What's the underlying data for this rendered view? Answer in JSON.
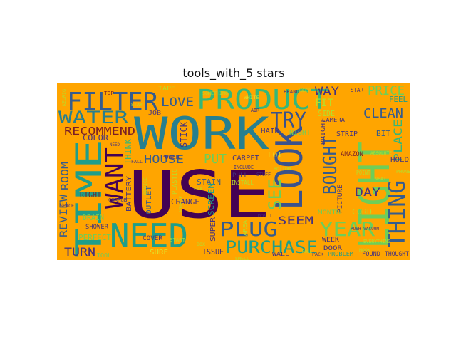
{
  "title": "tools_with_5 stars",
  "background_color": "#FFA500",
  "palette": {
    "dark_purple": "#440154",
    "indigo": "#46327E",
    "slate": "#3B528B",
    "steel": "#365C8D",
    "teal_blue": "#277F8E",
    "teal": "#1F9E89",
    "green": "#35B779",
    "light_green": "#6ECE58",
    "lime": "#B5DE2B",
    "yellow": "#E0E32A",
    "maroon": "#7A1F25",
    "brown": "#8B3A1A"
  },
  "words": [
    {
      "text": "USE",
      "color": "dark_purple"
    },
    {
      "text": "WORK",
      "color": "teal_blue"
    },
    {
      "text": "LIGHT",
      "color": "light_green"
    },
    {
      "text": "TIME",
      "color": "teal"
    },
    {
      "text": "LOOK",
      "color": "slate"
    },
    {
      "text": "NEED",
      "color": "teal"
    },
    {
      "text": "PRODUCT",
      "color": "green"
    },
    {
      "text": "FILTER",
      "color": "steel"
    },
    {
      "text": "WATER",
      "color": "teal_blue"
    },
    {
      "text": "WANT",
      "color": "dark_purple"
    },
    {
      "text": "THING",
      "color": "steel"
    },
    {
      "text": "TRY",
      "color": "slate"
    },
    {
      "text": "PLUG",
      "color": "steel"
    },
    {
      "text": "BOUGHT",
      "color": "steel"
    },
    {
      "text": "YEAR",
      "color": "light_green"
    },
    {
      "text": "PURCHASE",
      "color": "teal"
    },
    {
      "text": "SEE",
      "color": "light_green"
    },
    {
      "text": "CLEAN",
      "color": "steel"
    },
    {
      "text": "PRICE",
      "color": "light_green"
    },
    {
      "text": "RECOMMEND",
      "color": "maroon"
    },
    {
      "text": "HOUSE",
      "color": "steel"
    },
    {
      "text": "LOVE",
      "color": "steel"
    },
    {
      "text": "REVIEW",
      "color": "steel"
    },
    {
      "text": "ROOM",
      "color": "steel"
    },
    {
      "text": "DAY",
      "color": "indigo"
    },
    {
      "text": "SEEM",
      "color": "indigo"
    },
    {
      "text": "TURN",
      "color": "indigo"
    },
    {
      "text": "PUT",
      "color": "light_green"
    },
    {
      "text": "WAY",
      "color": "indigo"
    },
    {
      "text": "FIT",
      "color": "lime"
    },
    {
      "text": "PLACE",
      "color": "green"
    },
    {
      "text": "THINK",
      "color": "green"
    },
    {
      "text": "ISSUE",
      "color": "indigo"
    },
    {
      "text": "SIDE",
      "color": "lime"
    },
    {
      "text": "COLOR",
      "color": "indigo"
    },
    {
      "text": "RIGHT",
      "color": "maroon"
    },
    {
      "text": "BATTERY",
      "color": "indigo"
    },
    {
      "text": "OUTLET",
      "color": "steel"
    },
    {
      "text": "FEEL",
      "color": "teal"
    },
    {
      "text": "BIT",
      "color": "steel"
    },
    {
      "text": "CORD",
      "color": "lime"
    },
    {
      "text": "STRIP",
      "color": "indigo"
    },
    {
      "text": "HAIR",
      "color": "indigo"
    },
    {
      "text": "CHANGE",
      "color": "indigo"
    },
    {
      "text": "STAIN",
      "color": "steel"
    },
    {
      "text": "MONTH",
      "color": "light_green"
    },
    {
      "text": "NIGHT",
      "color": "light_green"
    },
    {
      "text": "SCREEN",
      "color": "teal"
    },
    {
      "text": "PERFECT",
      "color": "light_green"
    },
    {
      "text": "DRAIN",
      "color": "light_green"
    },
    {
      "text": "CARPET",
      "color": "indigo"
    },
    {
      "text": "WEEK",
      "color": "indigo"
    },
    {
      "text": "DOOR",
      "color": "indigo"
    },
    {
      "text": "SHOWER",
      "color": "indigo"
    },
    {
      "text": "STICK",
      "color": "indigo"
    },
    {
      "text": "PLASTIC",
      "color": "lime"
    },
    {
      "text": "PICTURE",
      "color": "indigo"
    },
    {
      "text": "AMAZON",
      "color": "maroon"
    },
    {
      "text": "HOLD",
      "color": "indigo"
    },
    {
      "text": "SURE",
      "color": "yellow"
    },
    {
      "text": "COVER",
      "color": "indigo"
    },
    {
      "text": "FOUND",
      "color": "indigo"
    },
    {
      "text": "THOUGHT",
      "color": "indigo"
    },
    {
      "text": "CAMERA",
      "color": "indigo"
    },
    {
      "text": "TOOL",
      "color": "light_green"
    },
    {
      "text": "PULL",
      "color": "indigo"
    },
    {
      "text": "LOT",
      "color": "yellow"
    },
    {
      "text": "INSTALL",
      "color": "lime"
    },
    {
      "text": "JOB",
      "color": "indigo"
    },
    {
      "text": "TAPE",
      "color": "lime"
    },
    {
      "text": "POWER",
      "color": "indigo"
    },
    {
      "text": "SUPER",
      "color": "indigo"
    },
    {
      "text": "PROBLEM",
      "color": "teal"
    },
    {
      "text": "AREA",
      "color": "lime"
    },
    {
      "text": "WALL",
      "color": "indigo"
    },
    {
      "text": "CHARGE",
      "color": "indigo"
    },
    {
      "text": "POINT",
      "color": "lime"
    },
    {
      "text": "PHONE",
      "color": "lime"
    },
    {
      "text": "STAR",
      "color": "indigo"
    },
    {
      "text": "TOP",
      "color": "maroon"
    },
    {
      "text": "AIR",
      "color": "indigo"
    },
    {
      "text": "STUFF",
      "color": "indigo"
    },
    {
      "text": "INCLUDE",
      "color": "indigo"
    },
    {
      "text": "EVERYTHING",
      "color": "lime"
    },
    {
      "text": "SPACE",
      "color": "indigo"
    },
    {
      "text": "BRIGHT",
      "color": "indigo"
    },
    {
      "text": "START",
      "color": "lime"
    },
    {
      "text": "SOMETHING",
      "color": "lime"
    },
    {
      "text": "BRAND",
      "color": "indigo"
    },
    {
      "text": "PUSH VACUUM",
      "color": "indigo"
    },
    {
      "text": "DON T",
      "color": "indigo"
    },
    {
      "text": "FALL",
      "color": "indigo"
    },
    {
      "text": "NEED",
      "color": "indigo"
    },
    {
      "text": "KEURIG",
      "color": "lime"
    },
    {
      "text": "DEVICE",
      "color": "lime"
    },
    {
      "text": "STAY",
      "color": "lime"
    },
    {
      "text": "WHITE",
      "color": "yellow"
    },
    {
      "text": "SMELL",
      "color": "lime"
    },
    {
      "text": "PACK",
      "color": "indigo"
    },
    {
      "text": "ABSOLUTE",
      "color": "lime"
    },
    {
      "text": "NEAT",
      "color": "lime"
    },
    {
      "text": "HOOK",
      "color": "lime"
    },
    {
      "text": "FIX",
      "color": "lime"
    },
    {
      "text": "BOX",
      "color": "lime"
    },
    {
      "text": "BOTTOM",
      "color": "lime"
    },
    {
      "text": "KEEP",
      "color": "lime"
    },
    {
      "text": "MINUTE",
      "color": "lime"
    },
    {
      "text": "ROLL",
      "color": "lime"
    }
  ]
}
